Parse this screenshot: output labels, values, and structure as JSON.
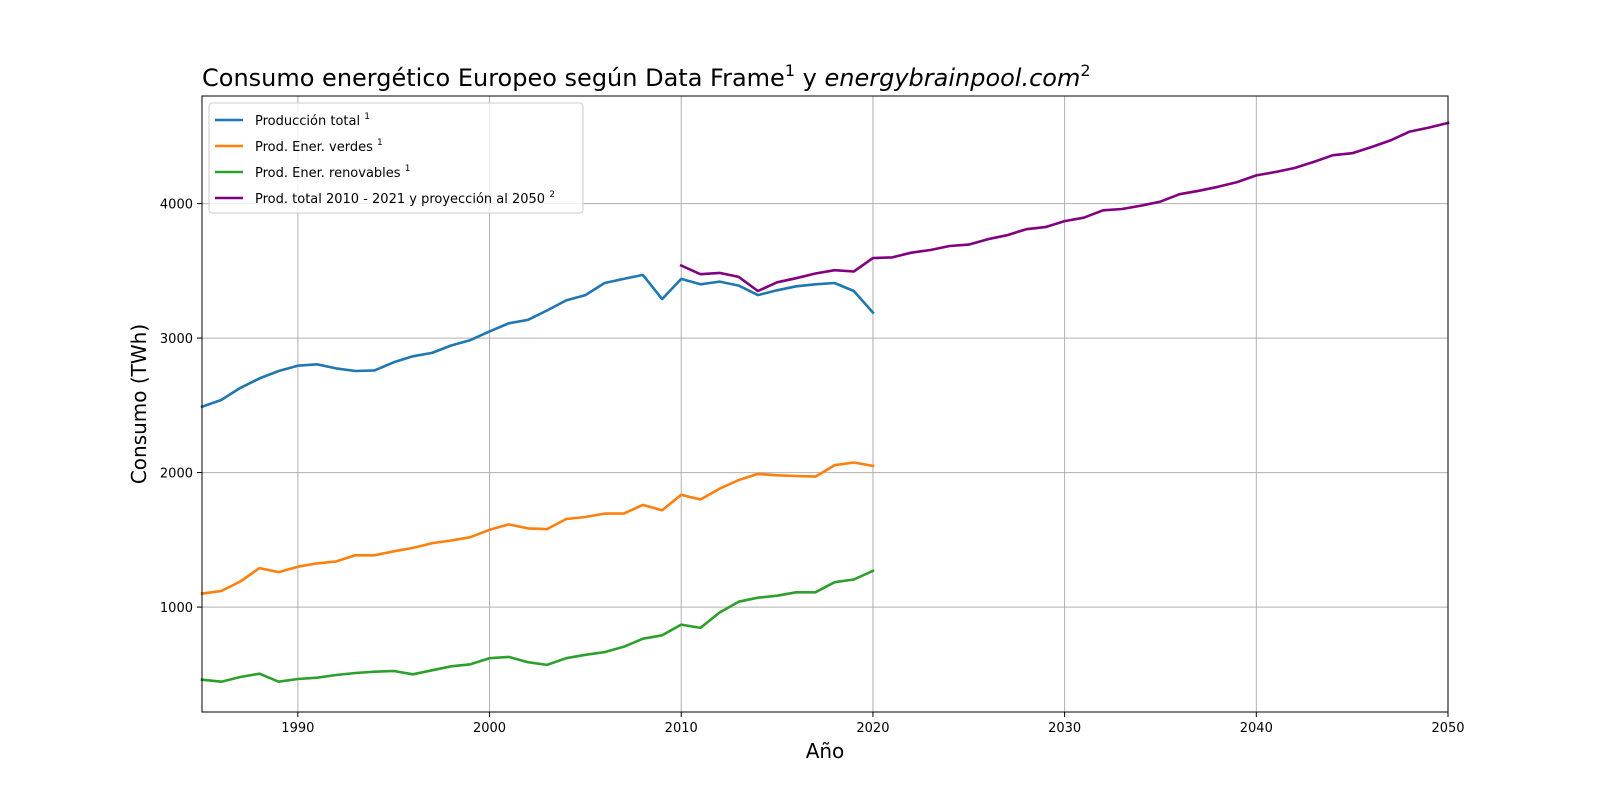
{
  "chart_data": {
    "type": "line",
    "title": {
      "prefix": "Consumo energético Europeo según Data Frame",
      "sup1": "1",
      "middle": " y ",
      "italic": "energybrainpool.com",
      "sup2": "2"
    },
    "xlabel": "Año",
    "ylabel": "Consumo (TWh)",
    "xlim": [
      1985,
      2050
    ],
    "ylim": [
      220,
      4800
    ],
    "xticks": [
      1990,
      2000,
      2010,
      2020,
      2030,
      2040,
      2050
    ],
    "yticks": [
      1000,
      2000,
      3000,
      4000
    ],
    "grid": true,
    "legend_position": "upper-left",
    "series": [
      {
        "name": "Producción total",
        "superscript": "1",
        "color": "#1f77b4",
        "x": [
          1985,
          1986,
          1987,
          1988,
          1989,
          1990,
          1991,
          1992,
          1993,
          1994,
          1995,
          1996,
          1997,
          1998,
          1999,
          2000,
          2001,
          2002,
          2003,
          2004,
          2005,
          2006,
          2007,
          2008,
          2009,
          2010,
          2011,
          2012,
          2013,
          2014,
          2015,
          2016,
          2017,
          2018,
          2019,
          2020
        ],
        "y": [
          2490,
          2540,
          2630,
          2700,
          2755,
          2795,
          2805,
          2775,
          2755,
          2760,
          2820,
          2865,
          2890,
          2945,
          2985,
          3050,
          3110,
          3135,
          3205,
          3280,
          3320,
          3410,
          3440,
          3470,
          3290,
          3440,
          3400,
          3420,
          3390,
          3320,
          3355,
          3385,
          3400,
          3410,
          3350,
          3190
        ]
      },
      {
        "name": "Prod. Ener. verdes",
        "superscript": "1",
        "color": "#ff7f0e",
        "x": [
          1985,
          1986,
          1987,
          1988,
          1989,
          1990,
          1991,
          1992,
          1993,
          1994,
          1995,
          1996,
          1997,
          1998,
          1999,
          2000,
          2001,
          2002,
          2003,
          2004,
          2005,
          2006,
          2007,
          2008,
          2009,
          2010,
          2011,
          2012,
          2013,
          2014,
          2015,
          2016,
          2017,
          2018,
          2019,
          2020
        ],
        "y": [
          1100,
          1120,
          1190,
          1290,
          1260,
          1300,
          1325,
          1340,
          1385,
          1385,
          1415,
          1440,
          1475,
          1495,
          1520,
          1575,
          1615,
          1585,
          1580,
          1655,
          1670,
          1695,
          1695,
          1760,
          1720,
          1835,
          1800,
          1880,
          1945,
          1990,
          1980,
          1975,
          1970,
          2055,
          2075,
          2050
        ]
      },
      {
        "name": "Prod. Ener. renovables",
        "superscript": "1",
        "color": "#2ca02c",
        "x": [
          1985,
          1986,
          1987,
          1988,
          1989,
          1990,
          1991,
          1992,
          1993,
          1994,
          1995,
          1996,
          1997,
          1998,
          1999,
          2000,
          2001,
          2002,
          2003,
          2004,
          2005,
          2006,
          2007,
          2008,
          2009,
          2010,
          2011,
          2012,
          2013,
          2014,
          2015,
          2016,
          2017,
          2018,
          2019,
          2020
        ],
        "y": [
          460,
          445,
          480,
          505,
          445,
          465,
          475,
          495,
          510,
          520,
          525,
          500,
          530,
          560,
          575,
          620,
          630,
          590,
          570,
          620,
          645,
          665,
          705,
          765,
          790,
          870,
          845,
          960,
          1040,
          1070,
          1085,
          1110,
          1110,
          1185,
          1205,
          1270
        ]
      },
      {
        "name": "Prod. total 2010 - 2021 y proyección al 2050",
        "superscript": "2",
        "color": "#800080",
        "x": [
          2010,
          2011,
          2012,
          2013,
          2014,
          2015,
          2016,
          2017,
          2018,
          2019,
          2020,
          2021,
          2022,
          2023,
          2024,
          2025,
          2026,
          2027,
          2028,
          2029,
          2030,
          2031,
          2032,
          2033,
          2034,
          2035,
          2036,
          2037,
          2038,
          2039,
          2040,
          2041,
          2042,
          2043,
          2044,
          2045,
          2046,
          2047,
          2048,
          2049,
          2050
        ],
        "y": [
          3540,
          3475,
          3485,
          3455,
          3350,
          3415,
          3445,
          3480,
          3505,
          3495,
          3595,
          3600,
          3635,
          3655,
          3685,
          3695,
          3735,
          3765,
          3810,
          3825,
          3870,
          3895,
          3950,
          3960,
          3985,
          4015,
          4070,
          4095,
          4125,
          4160,
          4210,
          4235,
          4265,
          4310,
          4360,
          4375,
          4420,
          4470,
          4535,
          4565,
          4600
        ]
      }
    ]
  }
}
